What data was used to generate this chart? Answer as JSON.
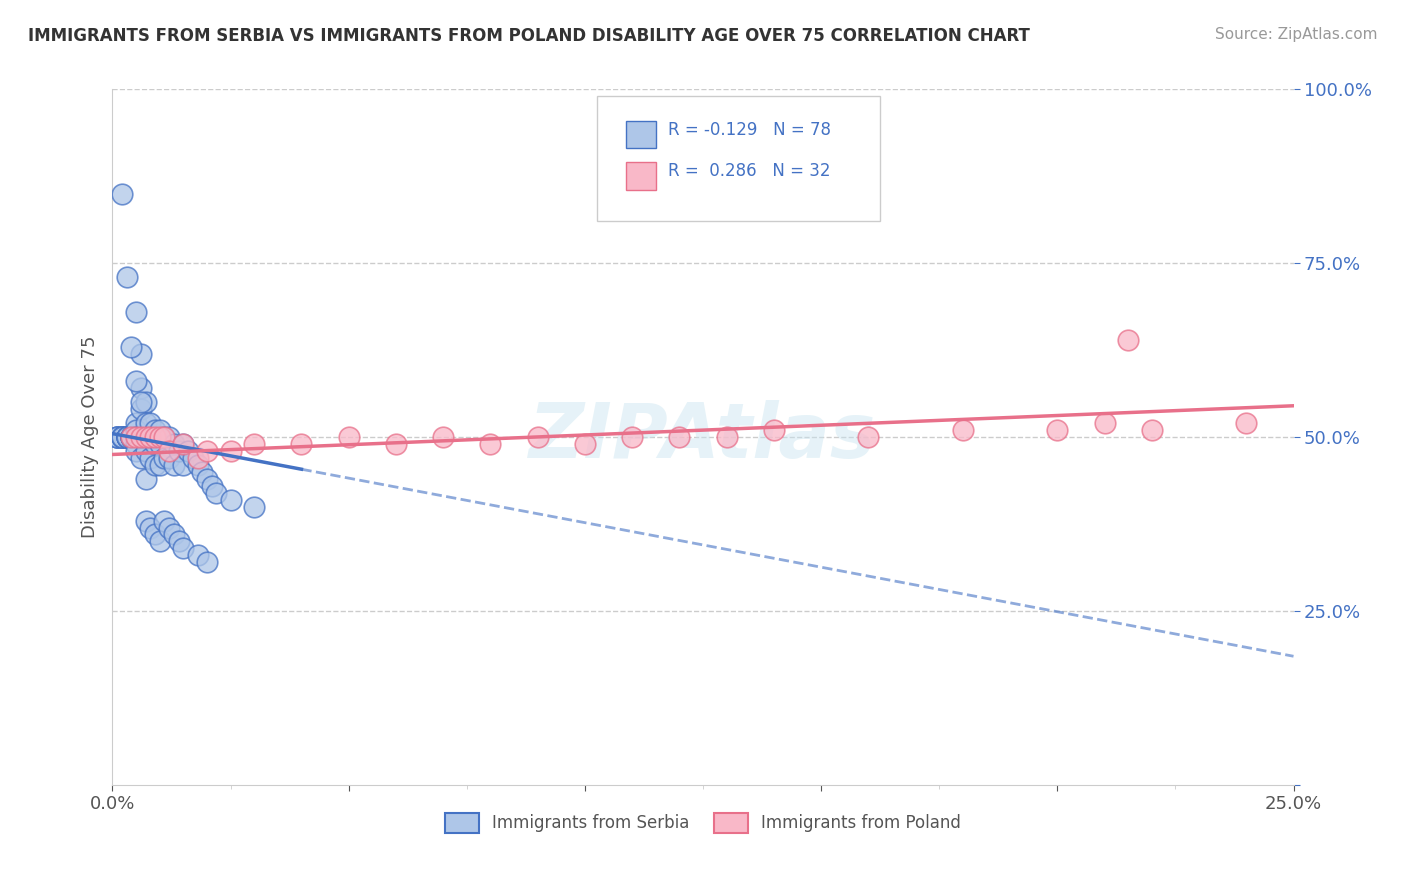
{
  "title": "IMMIGRANTS FROM SERBIA VS IMMIGRANTS FROM POLAND DISABILITY AGE OVER 75 CORRELATION CHART",
  "source": "Source: ZipAtlas.com",
  "ylabel_label": "Disability Age Over 75",
  "legend_label1": "Immigrants from Serbia",
  "legend_label2": "Immigrants from Poland",
  "R_serbia": -0.129,
  "N_serbia": 78,
  "R_poland": 0.286,
  "N_poland": 32,
  "serbia_color": "#aec6e8",
  "serbia_edge": "#4472c4",
  "poland_color": "#f9b8c8",
  "poland_edge": "#e8708a",
  "serbia_line_color": "#4472c4",
  "poland_line_color": "#e8708a",
  "xmin": 0.0,
  "xmax": 0.25,
  "ymin": 0.0,
  "ymax": 1.0,
  "serbia_x": [
    0.001,
    0.001,
    0.001,
    0.001,
    0.002,
    0.002,
    0.002,
    0.002,
    0.002,
    0.003,
    0.003,
    0.003,
    0.003,
    0.003,
    0.003,
    0.004,
    0.004,
    0.004,
    0.004,
    0.004,
    0.004,
    0.005,
    0.005,
    0.005,
    0.005,
    0.005,
    0.005,
    0.006,
    0.006,
    0.006,
    0.006,
    0.007,
    0.007,
    0.007,
    0.007,
    0.008,
    0.008,
    0.008,
    0.009,
    0.009,
    0.009,
    0.01,
    0.01,
    0.01,
    0.011,
    0.011,
    0.012,
    0.012,
    0.013,
    0.013,
    0.014,
    0.015,
    0.015,
    0.016,
    0.017,
    0.018,
    0.019,
    0.02,
    0.021,
    0.022,
    0.002,
    0.003,
    0.004,
    0.005,
    0.006,
    0.007,
    0.008,
    0.009,
    0.01,
    0.011,
    0.012,
    0.013,
    0.014,
    0.015,
    0.018,
    0.02,
    0.025,
    0.03
  ],
  "serbia_y": [
    0.5,
    0.5,
    0.5,
    0.5,
    0.5,
    0.5,
    0.5,
    0.5,
    0.5,
    0.5,
    0.5,
    0.5,
    0.5,
    0.5,
    0.5,
    0.5,
    0.5,
    0.5,
    0.5,
    0.5,
    0.5,
    0.52,
    0.51,
    0.5,
    0.49,
    0.48,
    0.68,
    0.62,
    0.57,
    0.54,
    0.47,
    0.55,
    0.52,
    0.48,
    0.44,
    0.52,
    0.5,
    0.47,
    0.51,
    0.49,
    0.46,
    0.51,
    0.49,
    0.46,
    0.5,
    0.47,
    0.5,
    0.47,
    0.49,
    0.46,
    0.48,
    0.49,
    0.46,
    0.48,
    0.47,
    0.46,
    0.45,
    0.44,
    0.43,
    0.42,
    0.85,
    0.73,
    0.63,
    0.58,
    0.55,
    0.38,
    0.37,
    0.36,
    0.35,
    0.38,
    0.37,
    0.36,
    0.35,
    0.34,
    0.33,
    0.32,
    0.41,
    0.4
  ],
  "poland_x": [
    0.004,
    0.005,
    0.006,
    0.007,
    0.008,
    0.009,
    0.01,
    0.011,
    0.012,
    0.015,
    0.018,
    0.02,
    0.025,
    0.03,
    0.04,
    0.05,
    0.06,
    0.07,
    0.08,
    0.09,
    0.1,
    0.11,
    0.12,
    0.13,
    0.14,
    0.16,
    0.18,
    0.2,
    0.21,
    0.215,
    0.22,
    0.24
  ],
  "poland_y": [
    0.5,
    0.5,
    0.5,
    0.5,
    0.5,
    0.5,
    0.5,
    0.5,
    0.48,
    0.49,
    0.47,
    0.48,
    0.48,
    0.49,
    0.49,
    0.5,
    0.49,
    0.5,
    0.49,
    0.5,
    0.49,
    0.5,
    0.5,
    0.5,
    0.51,
    0.5,
    0.51,
    0.51,
    0.52,
    0.64,
    0.51,
    0.52
  ],
  "trendline_x": [
    0.0,
    0.25
  ],
  "serbia_trend_y": [
    0.505,
    0.185
  ],
  "poland_trend_y": [
    0.475,
    0.545
  ]
}
